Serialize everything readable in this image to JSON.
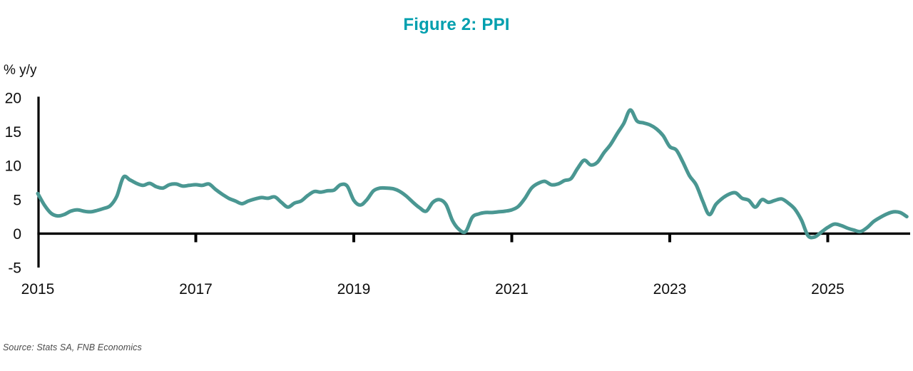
{
  "title": "Figure 2: PPI",
  "source": "Source: Stats SA, FNB Economics",
  "colors": {
    "title": "#009fae",
    "line": "#4a9792",
    "axis": "#000000",
    "tick_text": "#0d0d0d",
    "source_text": "#4a4a4a"
  },
  "chart_data": {
    "type": "line",
    "title": "Figure 2: PPI",
    "xlabel": "",
    "ylabel": "% y/y",
    "ylim": [
      -5,
      20
    ],
    "y_ticks": [
      20,
      15,
      10,
      5,
      0,
      -5
    ],
    "x_ticks": [
      2015,
      2017,
      2019,
      2021,
      2023,
      2025
    ],
    "x_tick_marks": [
      2017,
      2019,
      2021,
      2023,
      2025
    ],
    "grid": false,
    "legend": "none",
    "frequency": "monthly",
    "x_start": "2015-01",
    "x_end": "2026-01",
    "series": [
      {
        "name": "PPI % y/y",
        "values": [
          5.9,
          4.2,
          3.0,
          2.6,
          2.8,
          3.3,
          3.5,
          3.3,
          3.2,
          3.4,
          3.7,
          4.1,
          5.5,
          8.3,
          7.9,
          7.4,
          7.1,
          7.4,
          6.9,
          6.7,
          7.2,
          7.3,
          7.0,
          7.1,
          7.2,
          7.1,
          7.3,
          6.5,
          5.8,
          5.2,
          4.8,
          4.4,
          4.8,
          5.1,
          5.3,
          5.2,
          5.4,
          4.6,
          3.9,
          4.5,
          4.8,
          5.6,
          6.2,
          6.1,
          6.3,
          6.4,
          7.2,
          7.0,
          4.9,
          4.2,
          5.0,
          6.3,
          6.7,
          6.7,
          6.6,
          6.2,
          5.5,
          4.6,
          3.8,
          3.3,
          4.6,
          5.0,
          4.3,
          1.9,
          0.6,
          0.3,
          2.4,
          2.9,
          3.1,
          3.1,
          3.2,
          3.3,
          3.5,
          4.0,
          5.2,
          6.7,
          7.4,
          7.7,
          7.2,
          7.3,
          7.8,
          8.1,
          9.6,
          10.8,
          10.1,
          10.5,
          11.9,
          13.1,
          14.7,
          16.2,
          18.2,
          16.6,
          16.3,
          16.0,
          15.4,
          14.4,
          12.8,
          12.3,
          10.5,
          8.5,
          7.2,
          4.8,
          2.8,
          4.3,
          5.2,
          5.8,
          6.0,
          5.2,
          4.9,
          3.9,
          5.0,
          4.6,
          4.9,
          5.1,
          4.5,
          3.6,
          2.0,
          -0.3,
          -0.5,
          0.2,
          0.9,
          1.4,
          1.2,
          0.8,
          0.5,
          0.3,
          0.9,
          1.8,
          2.4,
          2.9,
          3.2,
          3.1,
          2.5
        ]
      }
    ]
  }
}
